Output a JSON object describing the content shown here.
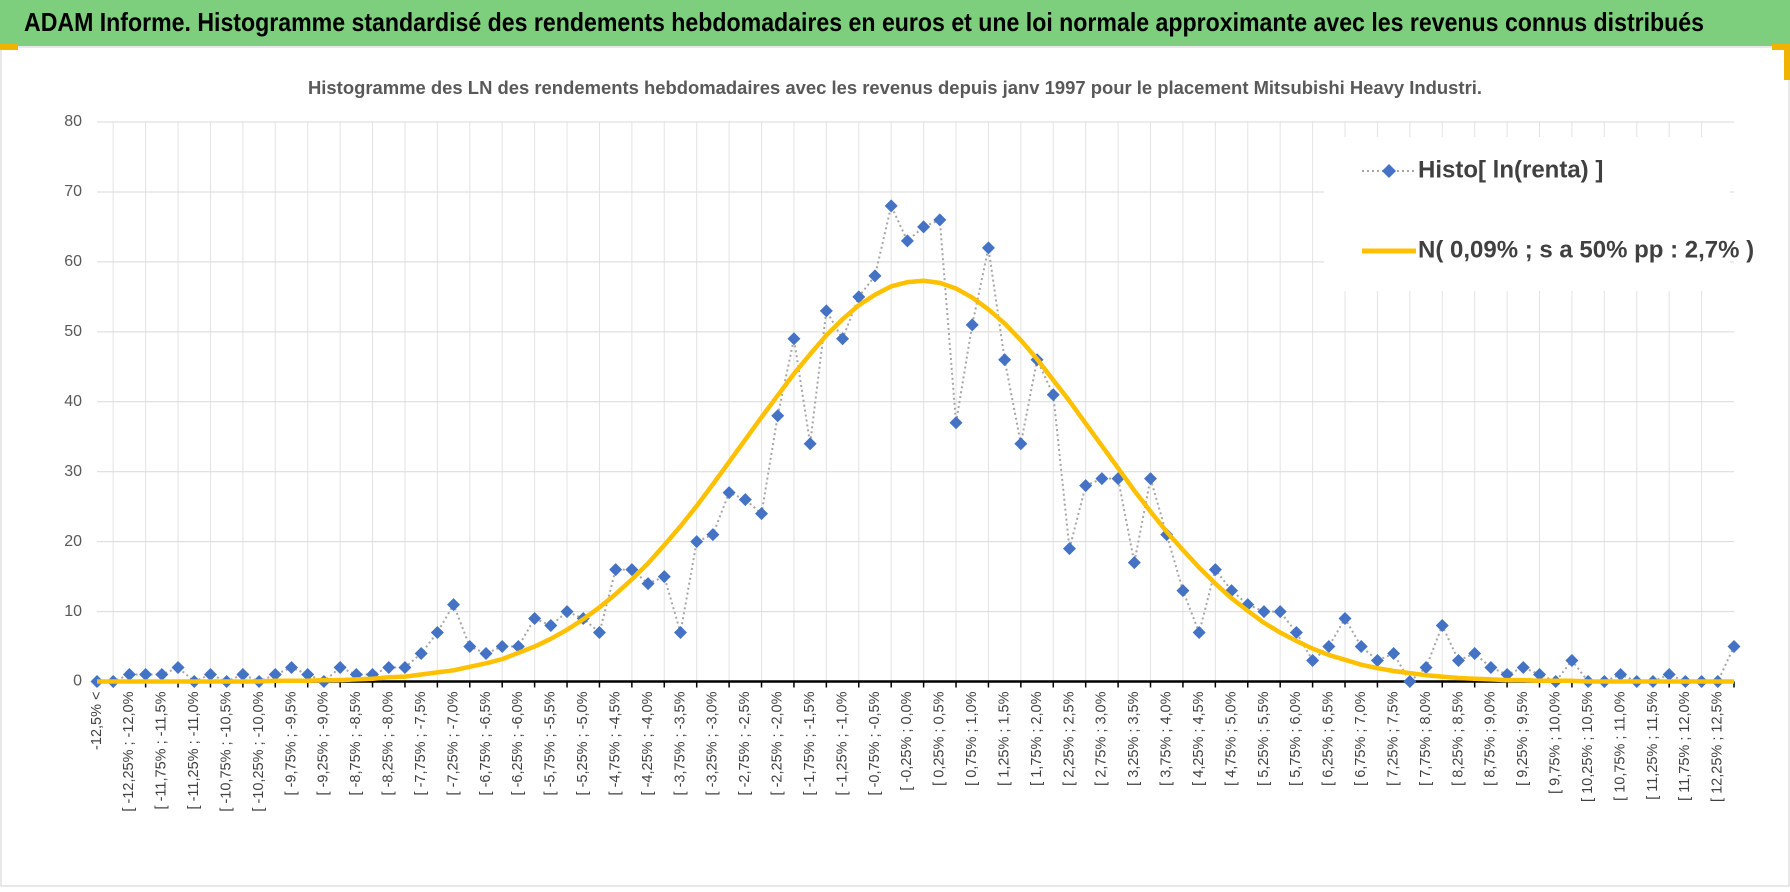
{
  "header": {
    "title": "ADAM Informe. Histogramme standardisé des rendements hebdomadaires en euros et une loi normale approximante avec les revenus connus distribués"
  },
  "chart_data": {
    "type": "line",
    "title": "Histogramme des LN des rendements hebdomadaires avec les revenus depuis janv 1997 pour le placement Mitsubishi Heavy Industri.",
    "categories": [
      "-12,5% <",
      null,
      "[ -12,25% ; -12,0%",
      null,
      "[ -11,75% ; -11,5%",
      null,
      "[ -11,25% ; -11,0%",
      null,
      "[ -10,75% ; -10,5%",
      null,
      "[ -10,25% ; -10,0%",
      null,
      "[ -9,75% ; -9,5%",
      null,
      "[ -9,25% ; -9,0%",
      null,
      "[ -8,75% ; -8,5%",
      null,
      "[ -8,25% ; -8,0%",
      null,
      "[ -7,75% ; -7,5%",
      null,
      "[ -7,25% ; -7,0%",
      null,
      "[ -6,75% ; -6,5%",
      null,
      "[ -6,25% ; -6,0%",
      null,
      "[ -5,75% ; -5,5%",
      null,
      "[ -5,25% ; -5,0%",
      null,
      "[ -4,75% ; -4,5%",
      null,
      "[ -4,25% ; -4,0%",
      null,
      "[ -3,75% ; -3,5%",
      null,
      "[ -3,25% ; -3,0%",
      null,
      "[ -2,75% ; -2,5%",
      null,
      "[ -2,25% ; -2,0%",
      null,
      "[ -1,75% ; -1,5%",
      null,
      "[ -1,25% ; -1,0%",
      null,
      "[ -0,75% ; -0,5%",
      null,
      "[ -0,25% ; 0,0%",
      null,
      "[ 0,25% ; 0,5%",
      null,
      "[ 0,75% ; 1,0%",
      null,
      "[ 1,25% ; 1,5%",
      null,
      "[ 1,75% ; 2,0%",
      null,
      "[ 2,25% ; 2,5%",
      null,
      "[ 2,75% ; 3,0%",
      null,
      "[ 3,25% ; 3,5%",
      null,
      "[ 3,75% ; 4,0%",
      null,
      "[ 4,25% ; 4,5%",
      null,
      "[ 4,75% ; 5,0%",
      null,
      "[ 5,25% ; 5,5%",
      null,
      "[ 5,75% ; 6,0%",
      null,
      "[ 6,25% ; 6,5%",
      null,
      "[ 6,75% ; 7,0%",
      null,
      "[ 7,25% ; 7,5%",
      null,
      "[ 7,75% ; 8,0%",
      null,
      "[ 8,25% ; 8,5%",
      null,
      "[ 8,75% ; 9,0%",
      null,
      "[ 9,25% ; 9,5%",
      null,
      "[ 9,75% ; 10,0%",
      null,
      "[ 10,25% ; 10,5%",
      null,
      "[ 10,75% ; 11,0%",
      null,
      "[ 11,25% ; 11,5%",
      null,
      "[ 11,75% ; 12,0%",
      null,
      "[ 12,25% ; 12,5%",
      null
    ],
    "series": [
      {
        "name": "Histo[ ln(renta) ]",
        "color": "#4472c4",
        "line_color": "#a6a6a6",
        "values": [
          0,
          0,
          1,
          1,
          1,
          2,
          0,
          1,
          0,
          1,
          0,
          1,
          2,
          1,
          0,
          2,
          1,
          1,
          2,
          2,
          4,
          7,
          11,
          5,
          4,
          5,
          5,
          9,
          8,
          10,
          9,
          7,
          16,
          16,
          14,
          15,
          7,
          20,
          21,
          27,
          26,
          24,
          38,
          49,
          34,
          53,
          49,
          55,
          58,
          68,
          63,
          65,
          66,
          37,
          51,
          62,
          46,
          34,
          46,
          41,
          19,
          28,
          29,
          29,
          17,
          29,
          21,
          13,
          7,
          16,
          13,
          11,
          10,
          10,
          7,
          3,
          5,
          9,
          5,
          3,
          4,
          0,
          2,
          8,
          3,
          4,
          2,
          1,
          2,
          1,
          0,
          3,
          0,
          0,
          1,
          0,
          0,
          1,
          0,
          0,
          0,
          5
        ]
      },
      {
        "name": "N( 0,09% ; s a 50% pp : 2,7% )",
        "color": "#ffc000",
        "values": [
          0.0,
          0.0,
          0.0,
          0.0,
          0.0,
          0.0,
          0.0,
          0.0,
          0.0,
          0.0,
          0.0,
          0.1,
          0.1,
          0.1,
          0.2,
          0.2,
          0.3,
          0.4,
          0.6,
          0.7,
          1.0,
          1.3,
          1.6,
          2.1,
          2.6,
          3.2,
          4.1,
          5.0,
          6.1,
          7.4,
          8.9,
          10.6,
          12.5,
          14.6,
          16.9,
          19.5,
          22.2,
          25.1,
          28.2,
          31.4,
          34.6,
          37.8,
          40.9,
          44.0,
          46.8,
          49.5,
          51.8,
          53.8,
          55.3,
          56.5,
          57.1,
          57.3,
          57.0,
          56.2,
          54.9,
          53.2,
          51.2,
          48.8,
          46.1,
          43.1,
          40.1,
          36.9,
          33.7,
          30.5,
          27.3,
          24.3,
          21.4,
          18.8,
          16.3,
          14.0,
          11.9,
          10.1,
          8.4,
          7.0,
          5.8,
          4.7,
          3.8,
          3.1,
          2.4,
          1.9,
          1.5,
          1.2,
          0.9,
          0.7,
          0.5,
          0.4,
          0.3,
          0.2,
          0.2,
          0.1,
          0.1,
          0.1,
          0.0,
          0.0,
          0.0,
          0.0,
          0.0,
          0.0,
          0.0,
          0.0,
          0.0,
          0.0
        ]
      }
    ],
    "ylim": [
      0,
      80
    ],
    "yticks": [
      0,
      10,
      20,
      30,
      40,
      50,
      60,
      70,
      80
    ],
    "grid": true,
    "legend": "upper right"
  }
}
